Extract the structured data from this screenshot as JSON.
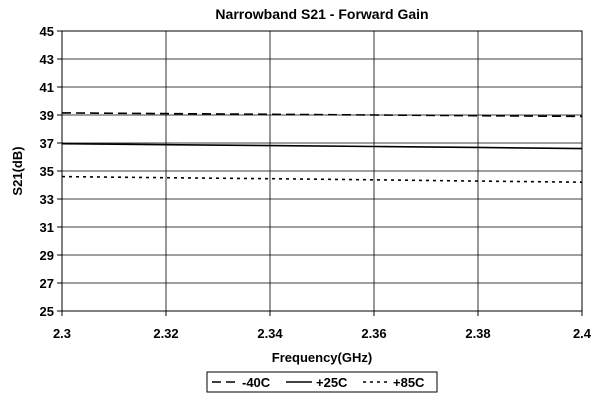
{
  "chart_data": {
    "type": "line",
    "title": "Narrowband S21 - Forward Gain",
    "xlabel": "Frequency(GHz)",
    "ylabel": "S21(dB)",
    "xlim": [
      2.3,
      2.4
    ],
    "ylim": [
      25,
      45
    ],
    "xticks": [
      "2.3",
      "2.32",
      "2.34",
      "2.36",
      "2.38",
      "2.4"
    ],
    "yticks": [
      "25",
      "27",
      "29",
      "31",
      "33",
      "35",
      "37",
      "39",
      "41",
      "43",
      "45"
    ],
    "grid": true,
    "legend_position": "bottom",
    "series": [
      {
        "name": "-40C",
        "style": "dashed",
        "color": "#000000",
        "x": [
          2.3,
          2.32,
          2.34,
          2.36,
          2.38,
          2.4
        ],
        "y": [
          39.15,
          39.1,
          39.05,
          39.0,
          38.95,
          38.9
        ]
      },
      {
        "name": "+25C",
        "style": "solid",
        "color": "#000000",
        "x": [
          2.3,
          2.32,
          2.34,
          2.36,
          2.38,
          2.4
        ],
        "y": [
          36.95,
          36.88,
          36.82,
          36.75,
          36.68,
          36.6
        ]
      },
      {
        "name": "+85C",
        "style": "dotted",
        "color": "#000000",
        "x": [
          2.3,
          2.32,
          2.34,
          2.36,
          2.38,
          2.4
        ],
        "y": [
          34.6,
          34.52,
          34.45,
          34.37,
          34.28,
          34.2
        ]
      }
    ]
  }
}
